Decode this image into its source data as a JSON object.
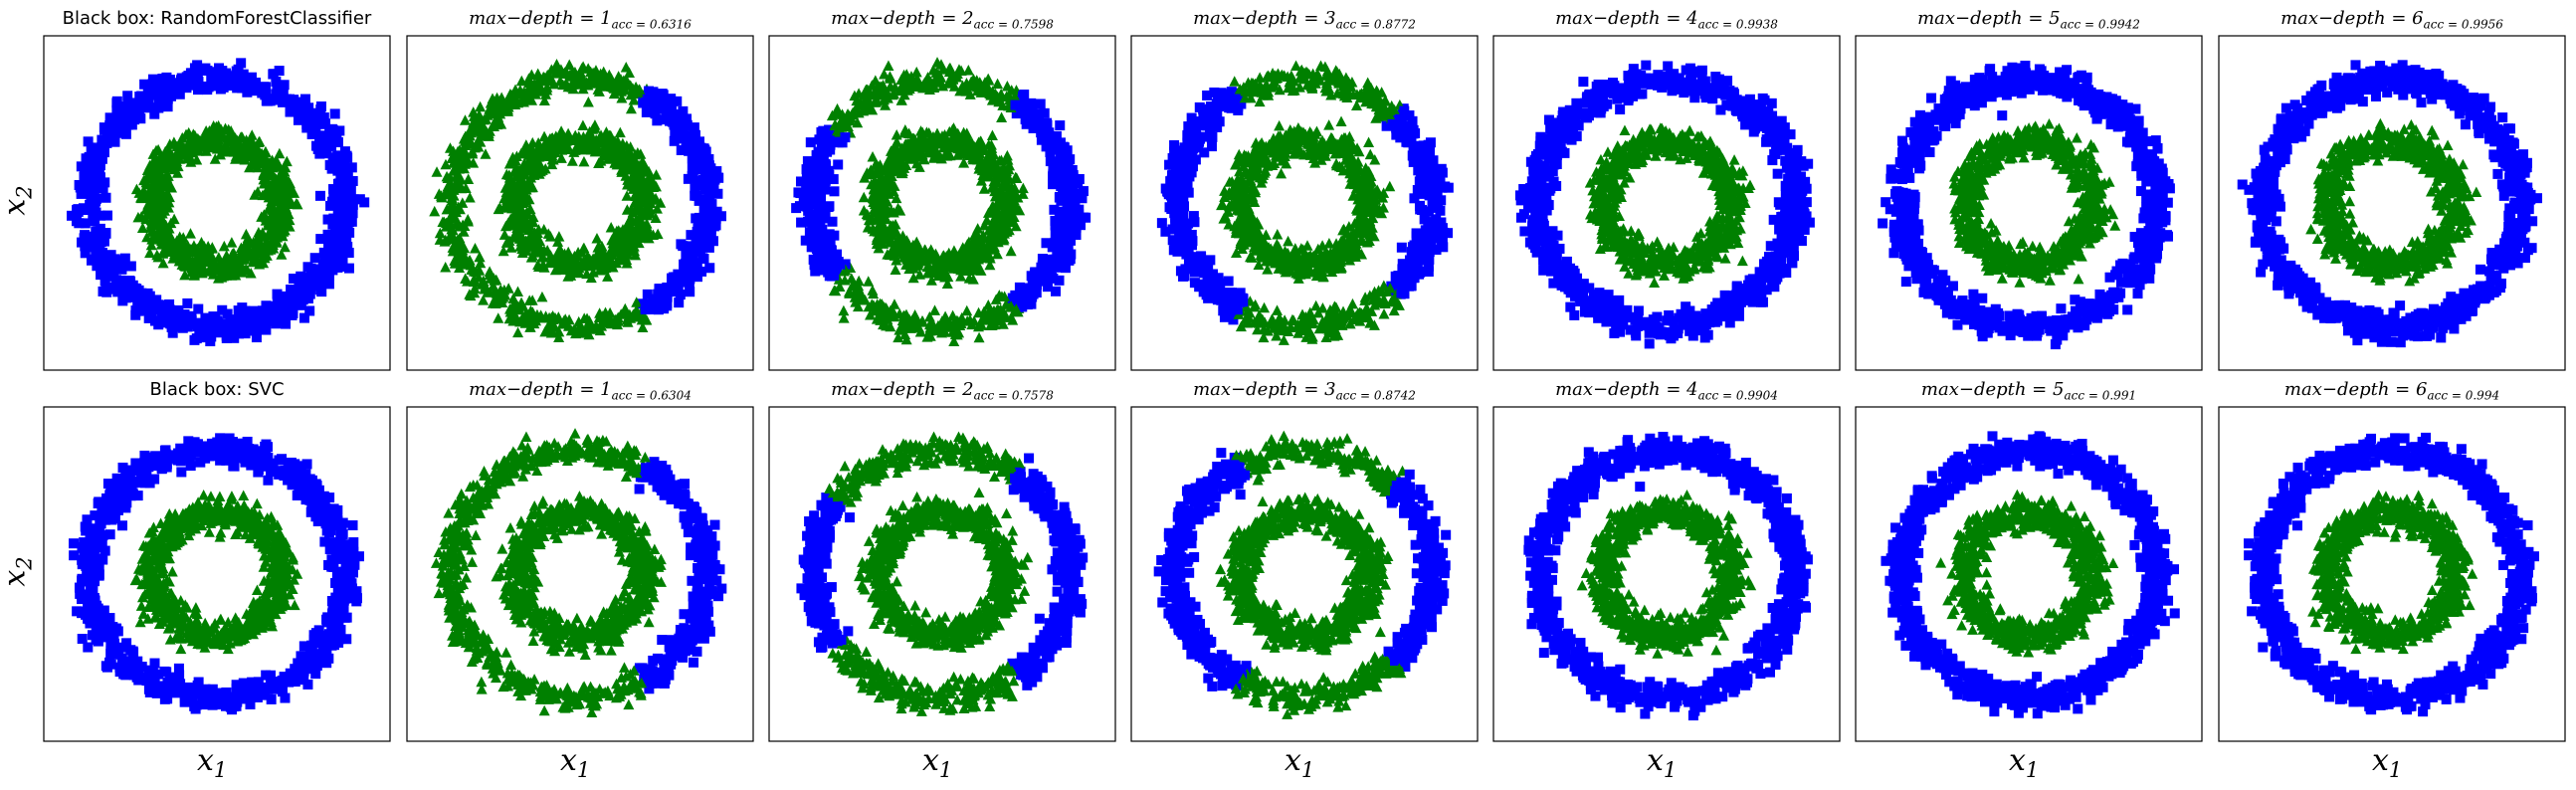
{
  "chart_data": [
    {
      "row": 1,
      "type": "scatter",
      "panels": [
        {
          "title": "Black box: RandomForestClassifier",
          "max_depth": null,
          "acc": null,
          "blue_arcs": [
            [
              0,
              360
            ]
          ],
          "green_outer_arcs": []
        },
        {
          "title": "max−depth = 1",
          "max_depth": "1",
          "acc": "0.6316",
          "blue_arcs": [
            [
              -60,
              60
            ]
          ],
          "green_outer_arcs": [
            [
              60,
              300
            ]
          ]
        },
        {
          "title": "max−depth = 2",
          "max_depth": "2",
          "acc": "0.7598",
          "blue_arcs": [
            [
              -55,
              55
            ],
            [
              145,
              215
            ]
          ],
          "green_outer_arcs": [
            [
              55,
              145
            ],
            [
              215,
              305
            ]
          ]
        },
        {
          "title": "max−depth = 3",
          "max_depth": "3",
          "acc": "0.8772",
          "blue_arcs": [
            [
              -45,
              45
            ],
            [
              120,
              240
            ]
          ],
          "green_outer_arcs": [
            [
              45,
              120
            ],
            [
              240,
              315
            ]
          ]
        },
        {
          "title": "max−depth = 4",
          "max_depth": "4",
          "acc": "0.9938",
          "blue_arcs": [
            [
              0,
              360
            ]
          ],
          "green_outer_arcs": []
        },
        {
          "title": "max−depth = 5",
          "max_depth": "5",
          "acc": "0.9942",
          "blue_arcs": [
            [
              0,
              360
            ]
          ],
          "green_outer_arcs": []
        },
        {
          "title": "max−depth = 6",
          "max_depth": "6",
          "acc": "0.9956",
          "blue_arcs": [
            [
              0,
              360
            ]
          ],
          "green_outer_arcs": []
        }
      ]
    },
    {
      "row": 2,
      "type": "scatter",
      "panels": [
        {
          "title": "Black box: SVC",
          "max_depth": null,
          "acc": null,
          "blue_arcs": [
            [
              0,
              360
            ]
          ],
          "green_outer_arcs": []
        },
        {
          "title": "max−depth = 1",
          "max_depth": "1",
          "acc": "0.6304",
          "blue_arcs": [
            [
              -60,
              60
            ]
          ],
          "green_outer_arcs": [
            [
              60,
              300
            ]
          ]
        },
        {
          "title": "max−depth = 2",
          "max_depth": "2",
          "acc": "0.7578",
          "blue_arcs": [
            [
              -55,
              55
            ],
            [
              145,
              215
            ]
          ],
          "green_outer_arcs": [
            [
              55,
              145
            ],
            [
              215,
              305
            ]
          ]
        },
        {
          "title": "max−depth = 3",
          "max_depth": "3",
          "acc": "0.8742",
          "blue_arcs": [
            [
              -45,
              45
            ],
            [
              120,
              240
            ]
          ],
          "green_outer_arcs": [
            [
              45,
              120
            ],
            [
              240,
              315
            ]
          ]
        },
        {
          "title": "max−depth = 4",
          "max_depth": "4",
          "acc": "0.9904",
          "blue_arcs": [
            [
              0,
              360
            ]
          ],
          "green_outer_arcs": []
        },
        {
          "title": "max−depth = 5",
          "max_depth": "5",
          "acc": "0.991",
          "blue_arcs": [
            [
              0,
              360
            ]
          ],
          "green_outer_arcs": []
        },
        {
          "title": "max−depth = 6",
          "max_depth": "6",
          "acc": "0.994",
          "blue_arcs": [
            [
              0,
              360
            ]
          ],
          "green_outer_arcs": []
        }
      ]
    }
  ],
  "xlabel": "x1",
  "ylabel": "x2",
  "acc_prefix": "acc = ",
  "colors": {
    "class_a": "#0000ff",
    "class_b": "#008000"
  },
  "markers": {
    "class_a": "square",
    "class_b": "triangle"
  },
  "data_geometry": {
    "inner_ring_radius": 0.5,
    "outer_ring_radius": 1.0,
    "ring_spread": 0.1,
    "axis_range": [
      -1.35,
      1.35
    ]
  }
}
